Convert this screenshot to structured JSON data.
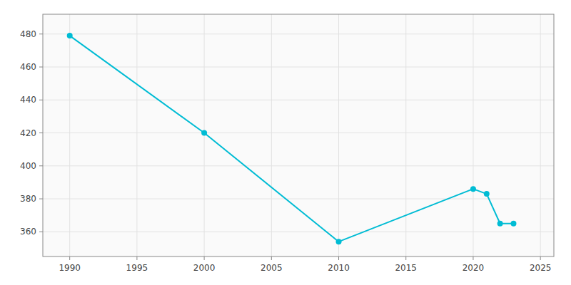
{
  "chart_data": {
    "type": "line",
    "x": [
      1990,
      2000,
      2010,
      2020,
      2021,
      2022,
      2023
    ],
    "values": [
      479,
      420,
      354,
      386,
      383,
      365,
      365
    ],
    "color": "#00BCD4",
    "marker": "circle",
    "xlim": [
      1988,
      2026
    ],
    "ylim": [
      345,
      492
    ],
    "xticks": [
      1990,
      1995,
      2000,
      2005,
      2010,
      2015,
      2020,
      2025
    ],
    "yticks": [
      360,
      380,
      400,
      420,
      440,
      460,
      480
    ],
    "grid": true
  }
}
